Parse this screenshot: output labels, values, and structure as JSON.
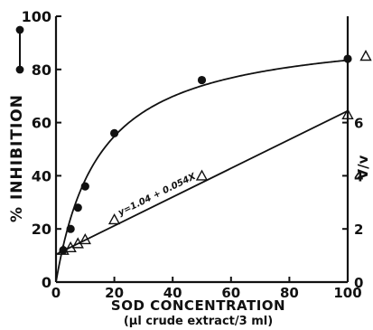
{
  "chart_data": {
    "type": "scatter",
    "xlabel": "SOD CONCENTRATION",
    "xlabel_sub": "(µl crude extract/3 ml)",
    "ylabel": "% INHIBITION",
    "y2label": "V/v",
    "xlim": [
      0,
      100
    ],
    "ylim": [
      0,
      100
    ],
    "y2lim": [
      0,
      10
    ],
    "x_ticks": [
      "0",
      "20",
      "40",
      "60",
      "80",
      "100"
    ],
    "y_ticks": [
      "0",
      "20",
      "40",
      "60",
      "80",
      "100"
    ],
    "y2_ticks": [
      "0",
      "2",
      "4",
      "6"
    ],
    "grid": false,
    "annotation": "y=1.04 + 0.054X",
    "series": [
      {
        "axis": "left",
        "marker": "filled-circle",
        "curve": "fitted",
        "x": [
          0,
          2.5,
          5,
          7.5,
          10,
          20,
          50,
          100
        ],
        "y": [
          0,
          12,
          20,
          28,
          36,
          56,
          76,
          84
        ]
      },
      {
        "axis": "right",
        "marker": "open-triangle",
        "fit_line": {
          "intercept": 1.04,
          "slope": 0.054
        },
        "x": [
          0,
          2.5,
          5,
          7.5,
          10,
          20,
          50,
          100
        ],
        "y": [
          1.0,
          1.2,
          1.3,
          1.45,
          1.6,
          2.35,
          4.0,
          6.3
        ]
      }
    ],
    "legend": [
      {
        "marker": "filled-circle",
        "axis": "left"
      },
      {
        "marker": "open-triangle",
        "axis": "right"
      }
    ]
  }
}
